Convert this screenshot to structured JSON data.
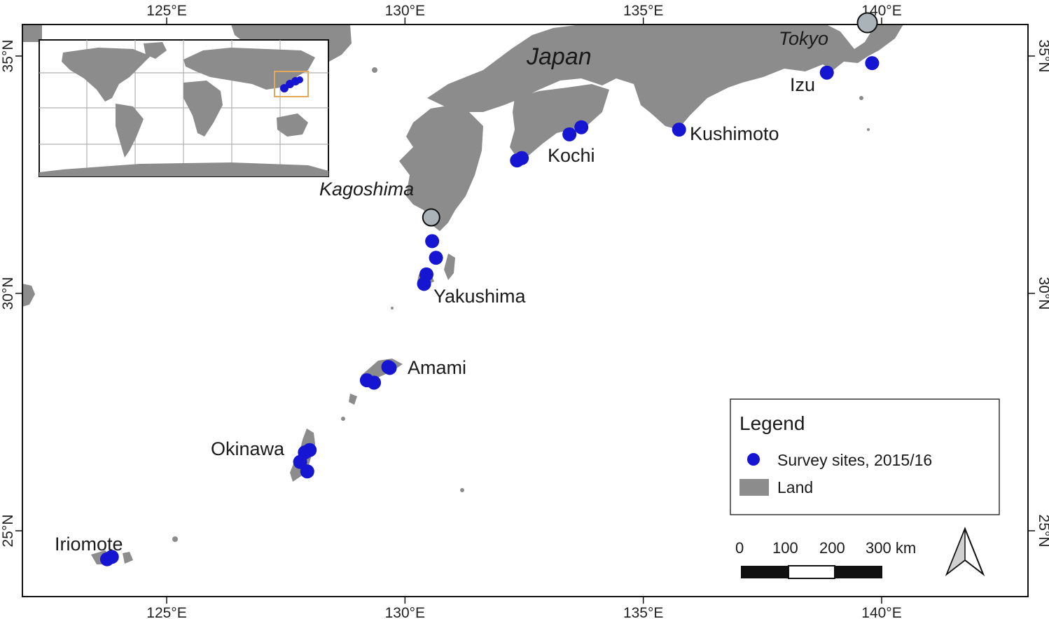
{
  "colors": {
    "land": "#8c8c8c",
    "site": "#1515d2",
    "city": "#a9b3b8",
    "frame": "#111111",
    "inset_box": "#e3a85a"
  },
  "axes": {
    "lon_labels": [
      "125°E",
      "130°E",
      "135°E",
      "140°E"
    ],
    "lat_labels": [
      "35°N",
      "30°N",
      "25°N"
    ]
  },
  "labels": {
    "country": "Japan",
    "cities": [
      {
        "name": "Tokyo",
        "lon": 139.7,
        "lat": 35.7
      },
      {
        "name": "Kagoshima",
        "lon": 130.55,
        "lat": 31.6
      }
    ],
    "sites": [
      {
        "name": "Izu",
        "lon": 138.95,
        "lat": 34.7
      },
      {
        "name": "Kushimoto",
        "lon": 135.78,
        "lat": 33.47
      },
      {
        "name": "Kochi",
        "lon": 133.53,
        "lat": 33.0
      },
      {
        "name": "Yakushima",
        "lon": 130.5,
        "lat": 30.35
      },
      {
        "name": "Amami",
        "lon": 129.5,
        "lat": 28.3
      },
      {
        "name": "Okinawa",
        "lon": 127.9,
        "lat": 26.5
      },
      {
        "name": "Iriomote",
        "lon": 123.8,
        "lat": 24.35
      }
    ]
  },
  "survey_sites": [
    {
      "lon": 139.8,
      "lat": 34.85
    },
    {
      "lon": 138.85,
      "lat": 34.65
    },
    {
      "lon": 135.75,
      "lat": 33.45
    },
    {
      "lon": 133.7,
      "lat": 33.5
    },
    {
      "lon": 133.45,
      "lat": 33.35
    },
    {
      "lon": 132.45,
      "lat": 32.85
    },
    {
      "lon": 132.35,
      "lat": 32.8
    },
    {
      "lon": 130.57,
      "lat": 31.1
    },
    {
      "lon": 130.65,
      "lat": 30.75
    },
    {
      "lon": 130.45,
      "lat": 30.4
    },
    {
      "lon": 130.4,
      "lat": 30.2
    },
    {
      "lon": 129.65,
      "lat": 28.45
    },
    {
      "lon": 129.68,
      "lat": 28.43
    },
    {
      "lon": 129.2,
      "lat": 28.17
    },
    {
      "lon": 129.35,
      "lat": 28.12
    },
    {
      "lon": 127.9,
      "lat": 26.65
    },
    {
      "lon": 128.0,
      "lat": 26.7
    },
    {
      "lon": 127.8,
      "lat": 26.45
    },
    {
      "lon": 127.95,
      "lat": 26.25
    },
    {
      "lon": 123.75,
      "lat": 24.4
    },
    {
      "lon": 123.85,
      "lat": 24.45
    }
  ],
  "legend": {
    "title": "Legend",
    "items": [
      {
        "label": "Survey sites, 2015/16",
        "symbol": "circle"
      },
      {
        "label": "Land",
        "symbol": "rect"
      }
    ]
  },
  "scale_bar": {
    "labels": [
      "0",
      "100",
      "200",
      "300 km"
    ]
  },
  "north_arrow": {
    "icon": "north-arrow-icon"
  }
}
